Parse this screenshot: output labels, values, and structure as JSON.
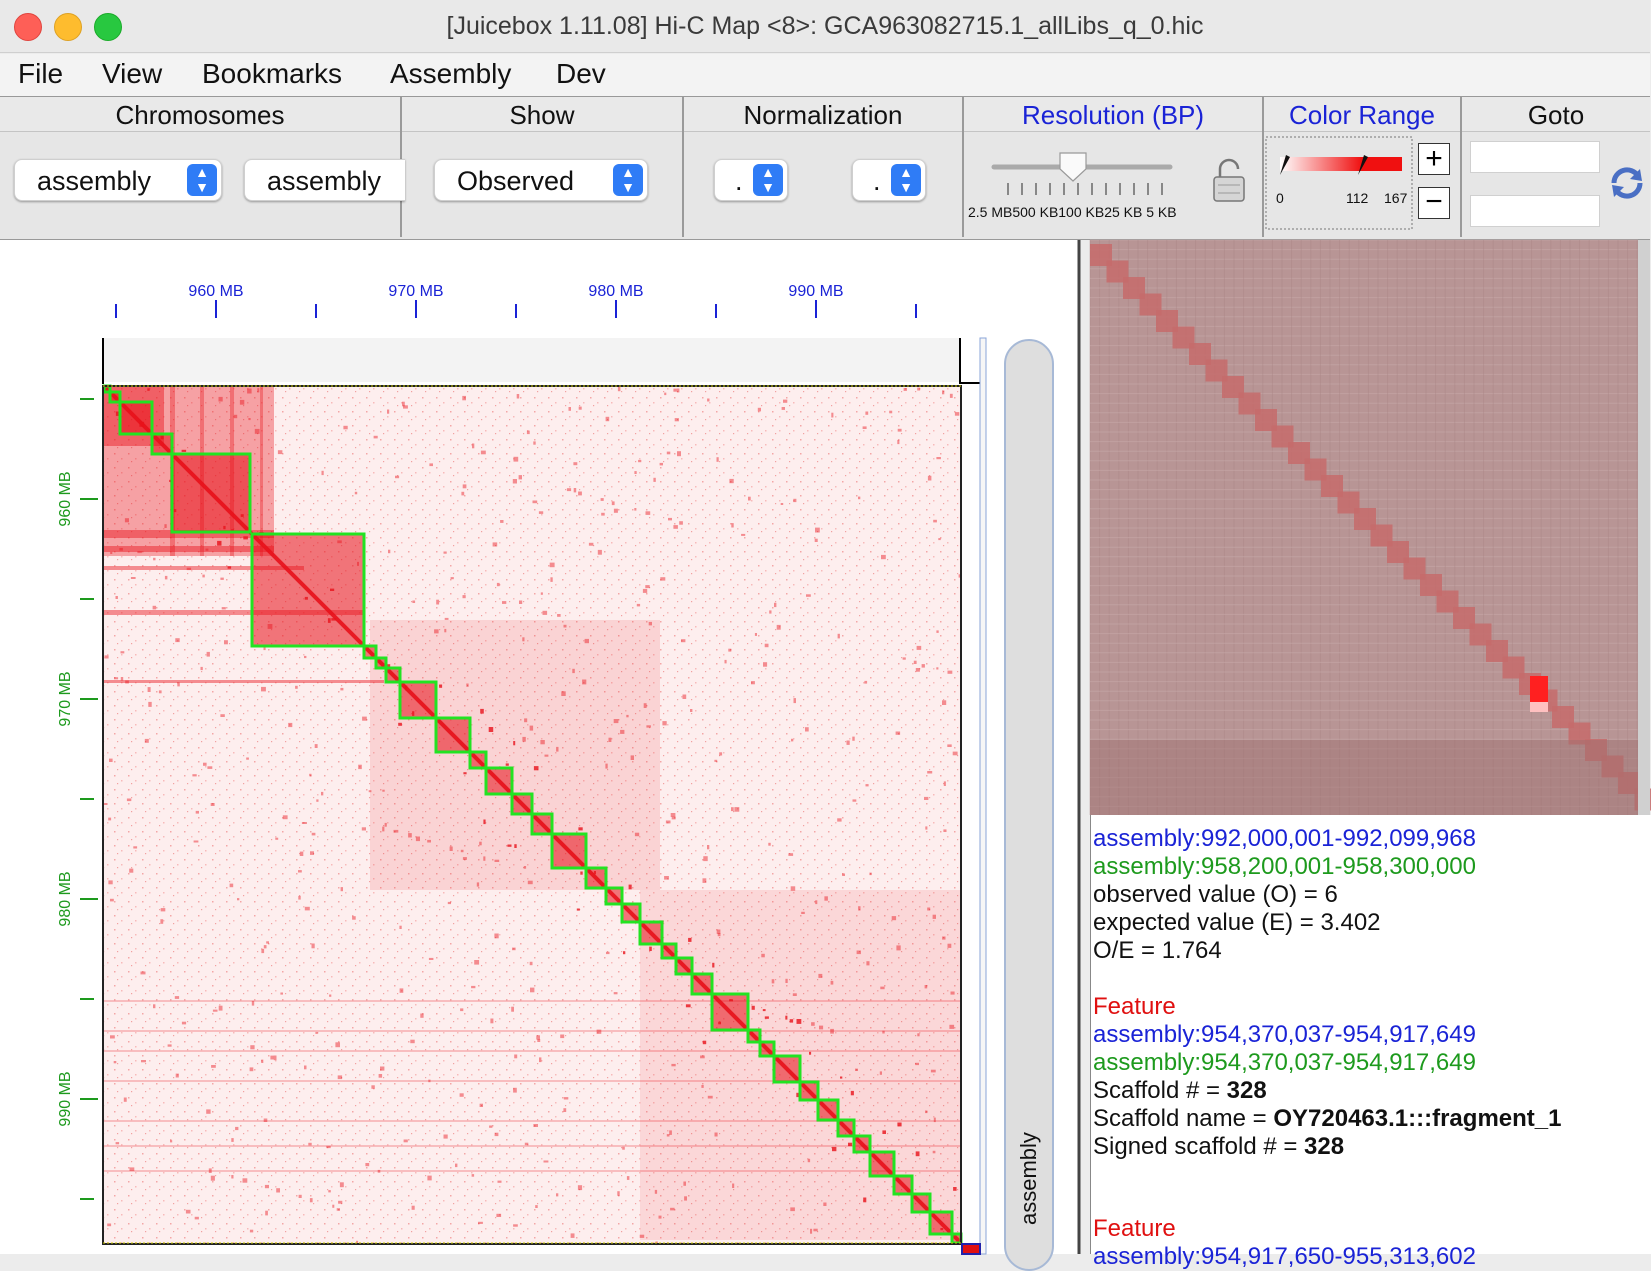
{
  "window": {
    "title": "[Juicebox 1.11.08] Hi-C Map <8>: GCA963082715.1_allLibs_q_0.hic"
  },
  "menu": [
    "File",
    "View",
    "Bookmarks",
    "Assembly",
    "Dev"
  ],
  "toolbar": {
    "chromosomes": {
      "label": "Chromosomes",
      "chrom1": "assembly",
      "chrom2": "assembly"
    },
    "show": {
      "label": "Show",
      "value": "Observed"
    },
    "normalization": {
      "label": "Normalization",
      "value1": ".",
      "value2": "."
    },
    "resolution": {
      "label": "Resolution (BP)",
      "ticks": "2.5 MB500 KB100 KB25 KB 5 KB"
    },
    "color_range": {
      "label": "Color Range",
      "min": "0",
      "mid": "112",
      "max": "167",
      "plus": "+",
      "minus": "−"
    },
    "goto": {
      "label": "Goto"
    }
  },
  "map": {
    "x_ticks": [
      "960 MB",
      "970 MB",
      "980 MB",
      "990 MB"
    ],
    "y_ticks": [
      "960 MB",
      "970 MB",
      "980 MB",
      "990 MB"
    ],
    "side_track_label": "assembly",
    "colors": {
      "heat": "#e8111a",
      "scaffold_box": "#22e322",
      "x_axis": "#1a23d6",
      "y_axis": "#1d9a1d"
    }
  },
  "info": {
    "pos_x": "assembly:992,000,001-992,099,968",
    "pos_y": "assembly:958,200,001-958,300,000",
    "observed": "observed value (O) = 6",
    "expected": "expected value (E) = 3.402",
    "oe": "O/E = 1.764",
    "feature1": {
      "title": "Feature",
      "pos_x": "assembly:954,370,037-954,917,649",
      "pos_y": "assembly:954,370,037-954,917,649",
      "scaffold_num_label": "Scaffold # = ",
      "scaffold_num": "328",
      "scaffold_name_label": "Scaffold name = ",
      "scaffold_name": "OY720463.1:::fragment_1",
      "signed_label": "Signed scaffold # = ",
      "signed_num": "328"
    },
    "feature2": {
      "title": "Feature",
      "pos_x": "assembly:954,917,650-955,313,602"
    }
  }
}
